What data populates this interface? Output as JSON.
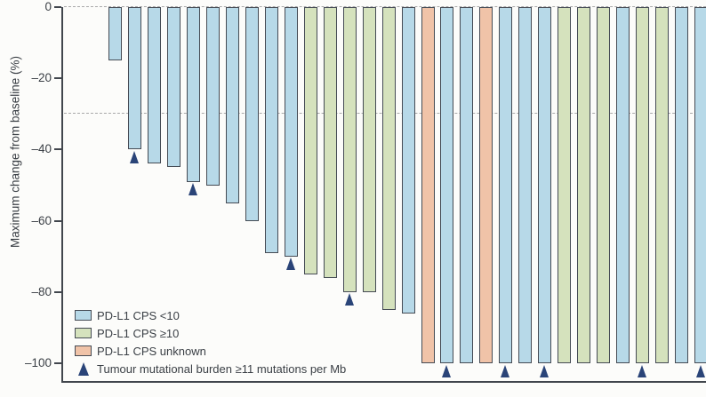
{
  "figure": {
    "background": "#fcfcfa"
  },
  "chart_data": {
    "type": "bar",
    "subtype": "waterfall",
    "title": "",
    "xlabel": "",
    "ylabel": "Maximum change from baseline (%)",
    "ylim": [
      -100,
      0
    ],
    "grid": false,
    "yticks": [
      {
        "value": 0,
        "label": "0"
      },
      {
        "value": -20,
        "label": "–20"
      },
      {
        "value": -40,
        "label": "–40"
      },
      {
        "value": -60,
        "label": "–60"
      },
      {
        "value": -80,
        "label": "–80"
      },
      {
        "value": -100,
        "label": "–100"
      }
    ],
    "reference_lines": [
      {
        "y": 0,
        "style": "dashed"
      },
      {
        "y": -30,
        "style": "dashed"
      }
    ],
    "legend": {
      "position": "bottom-left",
      "items": [
        {
          "key": "cps_lt10",
          "swatch": "rect",
          "label": "PD-L1 CPS <10"
        },
        {
          "key": "cps_ge10",
          "swatch": "rect",
          "label": "PD-L1 CPS ≥10"
        },
        {
          "key": "cps_unknown",
          "swatch": "rect",
          "label": "PD-L1 CPS unknown"
        },
        {
          "key": "tmb_high",
          "swatch": "triangle",
          "label": "Tumour mutational burden ≥11 mutations per Mb"
        }
      ]
    },
    "bars": [
      {
        "value": -15,
        "group": "cps_lt10",
        "tmb_high": false
      },
      {
        "value": -40,
        "group": "cps_lt10",
        "tmb_high": true
      },
      {
        "value": -44,
        "group": "cps_lt10",
        "tmb_high": false
      },
      {
        "value": -45,
        "group": "cps_lt10",
        "tmb_high": false
      },
      {
        "value": -49,
        "group": "cps_lt10",
        "tmb_high": true
      },
      {
        "value": -50,
        "group": "cps_lt10",
        "tmb_high": false
      },
      {
        "value": -55,
        "group": "cps_lt10",
        "tmb_high": false
      },
      {
        "value": -60,
        "group": "cps_lt10",
        "tmb_high": false
      },
      {
        "value": -69,
        "group": "cps_lt10",
        "tmb_high": false
      },
      {
        "value": -70,
        "group": "cps_lt10",
        "tmb_high": true
      },
      {
        "value": -75,
        "group": "cps_ge10",
        "tmb_high": false
      },
      {
        "value": -76,
        "group": "cps_ge10",
        "tmb_high": false
      },
      {
        "value": -80,
        "group": "cps_ge10",
        "tmb_high": true
      },
      {
        "value": -80,
        "group": "cps_ge10",
        "tmb_high": false
      },
      {
        "value": -85,
        "group": "cps_ge10",
        "tmb_high": false
      },
      {
        "value": -86,
        "group": "cps_lt10",
        "tmb_high": false
      },
      {
        "value": -100,
        "group": "cps_unknown",
        "tmb_high": false
      },
      {
        "value": -100,
        "group": "cps_lt10",
        "tmb_high": true
      },
      {
        "value": -100,
        "group": "cps_lt10",
        "tmb_high": false
      },
      {
        "value": -100,
        "group": "cps_unknown",
        "tmb_high": false
      },
      {
        "value": -100,
        "group": "cps_lt10",
        "tmb_high": true
      },
      {
        "value": -100,
        "group": "cps_lt10",
        "tmb_high": false
      },
      {
        "value": -100,
        "group": "cps_lt10",
        "tmb_high": true
      },
      {
        "value": -100,
        "group": "cps_ge10",
        "tmb_high": false
      },
      {
        "value": -100,
        "group": "cps_ge10",
        "tmb_high": false
      },
      {
        "value": -100,
        "group": "cps_ge10",
        "tmb_high": false
      },
      {
        "value": -100,
        "group": "cps_lt10",
        "tmb_high": false
      },
      {
        "value": -100,
        "group": "cps_ge10",
        "tmb_high": true
      },
      {
        "value": -100,
        "group": "cps_ge10",
        "tmb_high": false
      },
      {
        "value": -100,
        "group": "cps_lt10",
        "tmb_high": false
      },
      {
        "value": -100,
        "group": "cps_lt10",
        "tmb_high": true
      }
    ],
    "colors": {
      "cps_lt10": "#b7d9e8",
      "cps_ge10": "#d5e2bd",
      "cps_unknown": "#f0c3a8",
      "tmb_high": "#2a4478",
      "bar_border": "#454b54",
      "axis": "#41464d",
      "grid_dashed": "#a9a9a9",
      "text": "#3a3f45"
    }
  }
}
